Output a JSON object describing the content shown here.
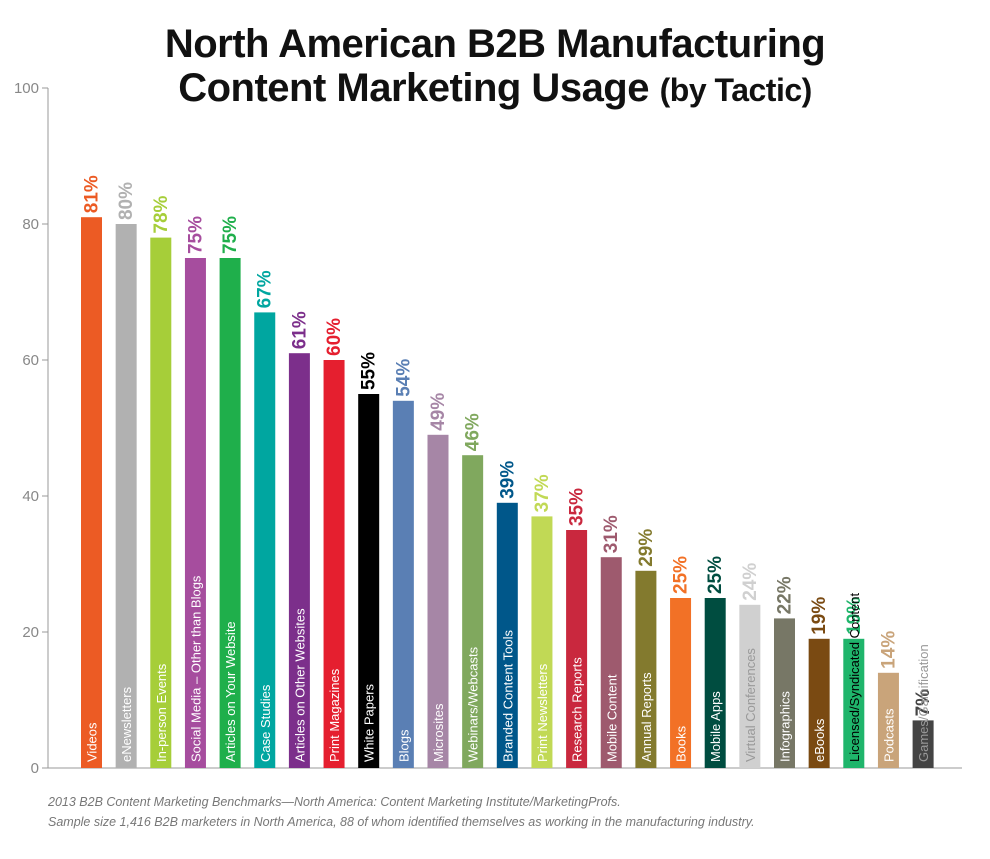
{
  "chart_data": {
    "type": "bar",
    "title_line1": "North American B2B Manufacturing",
    "title_line2": "Content Marketing Usage",
    "title_suffix": "(by Tactic)",
    "ylim": [
      0,
      100
    ],
    "yticks": [
      "0",
      "20",
      "40",
      "60",
      "80",
      "100"
    ],
    "grid": false,
    "categories": [
      "Videos",
      "eNewsletters",
      "In-person Events",
      "Social Media – Other than Blogs",
      "Articles on Your Website",
      "Case Studies",
      "Articles on Other Websites",
      "Print Magazines",
      "White Papers",
      "Blogs",
      "Microsites",
      "Webinars/Webcasts",
      "Branded Content Tools",
      "Print Newsletters",
      "Research Reports",
      "Mobile Content",
      "Annual Reports",
      "Books",
      "Mobile Apps",
      "Virtual Conferences",
      "Infographics",
      "eBooks",
      "Licensed/Syndicated Content",
      "Podcasts",
      "Games/Gamification"
    ],
    "values": [
      81,
      80,
      78,
      75,
      75,
      67,
      61,
      60,
      55,
      54,
      49,
      46,
      39,
      37,
      35,
      31,
      29,
      25,
      25,
      24,
      22,
      19,
      19,
      14,
      7
    ],
    "labels": [
      "81%",
      "80%",
      "78%",
      "75%",
      "75%",
      "67%",
      "61%",
      "60%",
      "55%",
      "54%",
      "49%",
      "46%",
      "39%",
      "37%",
      "35%",
      "31%",
      "29%",
      "25%",
      "25%",
      "24%",
      "22%",
      "19%",
      "19%",
      "14%",
      "7%"
    ],
    "colors": [
      "#ec5b24",
      "#b1b1b1",
      "#a6ce39",
      "#a64d9e",
      "#1faf4b",
      "#00a6a0",
      "#7c2f8b",
      "#e51f2f",
      "#000000",
      "#5a7fb4",
      "#a686a6",
      "#80a85e",
      "#00578a",
      "#c1d955",
      "#c9283e",
      "#9e5a6e",
      "#837a2e",
      "#f27126",
      "#004d40",
      "#d0d0d0",
      "#777766",
      "#7a4a12",
      "#1fb56b",
      "#c9a47a",
      "#444444"
    ],
    "category_label_colors": [
      "#ffffff",
      "#ffffff",
      "#ffffff",
      "#ffffff",
      "#ffffff",
      "#ffffff",
      "#ffffff",
      "#ffffff",
      "#ffffff",
      "#ffffff",
      "#ffffff",
      "#ffffff",
      "#ffffff",
      "#ffffff",
      "#ffffff",
      "#ffffff",
      "#ffffff",
      "#ffffff",
      "#ffffff",
      "#999999",
      "#ffffff",
      "#ffffff",
      "#000000",
      "#ffffff",
      "#999999"
    ]
  },
  "footnote": {
    "line1": "2013 B2B Content Marketing Benchmarks—North America: Content Marketing Institute/MarketingProfs.",
    "line2": "Sample size 1,416 B2B marketers in North America, 88 of whom identified themselves as working in the manufacturing industry."
  }
}
